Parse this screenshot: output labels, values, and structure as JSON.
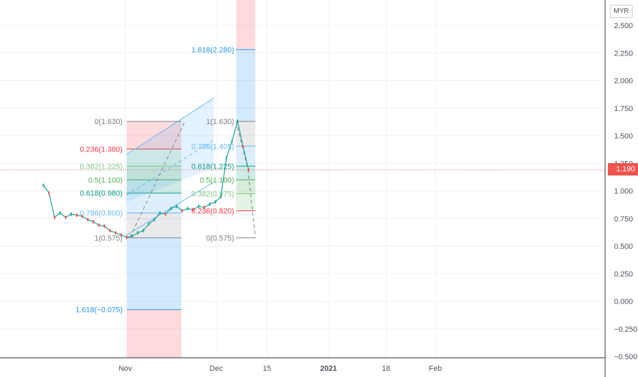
{
  "currency_label": "MYR",
  "last_price_label": "1.190",
  "chart_data": {
    "type": "line",
    "y_axis": {
      "ticks": [
        "2.500",
        "2.250",
        "2.000",
        "1.750",
        "1.500",
        "1.250",
        "1.000",
        "0.750",
        "0.500",
        "0.250",
        "0.000",
        "−0.250",
        "−0.500"
      ],
      "ylim": [
        -0.5,
        2.56
      ],
      "position": "right"
    },
    "x_axis": {
      "ticks": [
        "Nov",
        "Dec",
        "15",
        "2021",
        "18",
        "Feb"
      ]
    },
    "grid": true,
    "last_price": 1.19,
    "series": [
      {
        "x": [
          "2020-10-17",
          "2020-10-18",
          "2020-10-19",
          "2020-10-20",
          "2020-10-21",
          "2020-10-22",
          "2020-10-23",
          "2020-10-24",
          "2020-10-25",
          "2020-10-26",
          "2020-10-27",
          "2020-10-28",
          "2020-10-29",
          "2020-10-30",
          "2020-10-31",
          "2020-11-01",
          "2020-11-02",
          "2020-11-03",
          "2020-11-04",
          "2020-11-05",
          "2020-11-06",
          "2020-11-07",
          "2020-11-08",
          "2020-11-09",
          "2020-11-10",
          "2020-11-11",
          "2020-11-12",
          "2020-11-13",
          "2020-11-14",
          "2020-11-15",
          "2020-11-16",
          "2020-11-17",
          "2020-11-18",
          "2020-11-19",
          "2020-11-20",
          "2020-11-21",
          "2020-11-22",
          "2020-11-23"
        ],
        "values": [
          1.05,
          0.98,
          0.76,
          0.8,
          0.76,
          0.79,
          0.78,
          0.77,
          0.74,
          0.72,
          0.69,
          0.68,
          0.64,
          0.62,
          0.6,
          0.58,
          0.59,
          0.62,
          0.64,
          0.7,
          0.74,
          0.8,
          0.79,
          0.84,
          0.86,
          0.82,
          0.84,
          0.83,
          0.86,
          0.85,
          0.88,
          0.9,
          0.95,
          1.3,
          1.45,
          1.63,
          1.4,
          1.19
        ]
      }
    ],
    "fib_retracement": [
      {
        "label": "0(1.630)",
        "color": "#787b86"
      },
      {
        "label": "0.236(1.380)",
        "color": "#f23645"
      },
      {
        "label": "0.382(1.225)",
        "color": "#81c784"
      },
      {
        "label": "0.5(1.100)",
        "color": "#4caf50"
      },
      {
        "label": "0.618(0.980)",
        "color": "#089981"
      },
      {
        "label": "0.786(0.800)",
        "color": "#64b5f6"
      },
      {
        "label": "1(0.575)",
        "color": "#787b86"
      },
      {
        "label": "1.618(2.280)",
        "color": "#2196f3"
      },
      {
        "label": "1.618(−0.075)",
        "color": "#2196f3"
      }
    ],
    "fib_retracement_2": [
      {
        "label": "1(1.630)",
        "color": "#787b86"
      },
      {
        "label": "0.786(1.405)",
        "color": "#64b5f6"
      },
      {
        "label": "0.618(1.225)",
        "color": "#089981"
      },
      {
        "label": "0.5(1.100)",
        "color": "#4caf50"
      },
      {
        "label": "0.382(0.975)",
        "color": "#81c784"
      },
      {
        "label": "0.236(0.820)",
        "color": "#f23645"
      },
      {
        "label": "0(0.575)",
        "color": "#787b86"
      }
    ]
  }
}
